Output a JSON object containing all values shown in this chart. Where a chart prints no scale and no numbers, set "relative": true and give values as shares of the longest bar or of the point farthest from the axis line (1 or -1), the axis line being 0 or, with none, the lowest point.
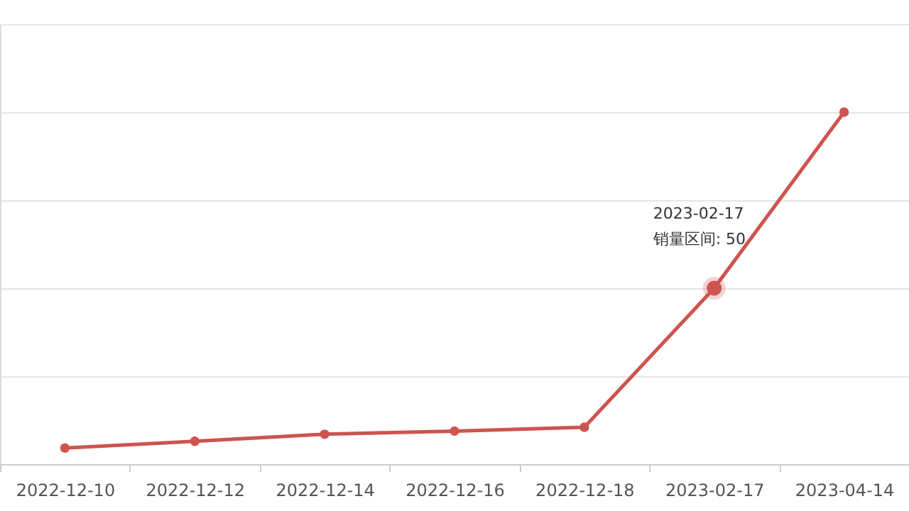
{
  "chart_data": {
    "type": "line",
    "relative": true,
    "categories": [
      "2022-12-10",
      "2022-12-12",
      "2022-12-14",
      "2022-12-16",
      "2022-12-18",
      "2023-02-17",
      "2023-04-14"
    ],
    "series": [
      {
        "color": "#cd5450",
        "values": [
          0.046,
          0.065,
          0.085,
          0.094,
          0.105,
          0.5,
          1
        ]
      }
    ],
    "annotations": [
      {
        "text": "2023-02-17\n销量区间: 50",
        "x": "2023-02-17",
        "y": 0.5
      }
    ],
    "grid": "y",
    "marker": "circle",
    "line_style": "solid"
  }
}
